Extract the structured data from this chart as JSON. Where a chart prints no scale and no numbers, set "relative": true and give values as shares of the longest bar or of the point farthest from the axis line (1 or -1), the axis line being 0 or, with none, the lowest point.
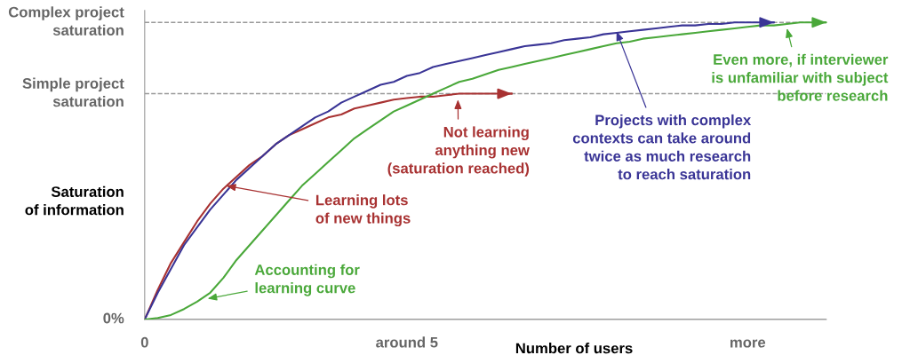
{
  "chart_data": {
    "type": "line",
    "relative": true,
    "xlabel": "Number of users",
    "ylabel": "Saturation\nof information",
    "categories": [
      "0",
      null,
      null,
      null,
      null,
      null,
      null,
      null,
      null,
      null,
      null,
      null,
      null,
      null,
      null,
      null,
      null,
      null,
      null,
      null,
      "around 5",
      null,
      null,
      null,
      null,
      null,
      null,
      null,
      null,
      null,
      null,
      null,
      null,
      null,
      null,
      null,
      null,
      null,
      null,
      null,
      null,
      null,
      null,
      null,
      null,
      null,
      "more",
      null,
      null,
      null,
      null,
      null,
      null
    ],
    "grid": false,
    "legend": false,
    "marker": "none",
    "line_style": "solid",
    "ref_lines": [
      {
        "axis": "y",
        "value": 1,
        "label": "Complex project\nsaturation",
        "color": "#999999",
        "line_style": "dashed"
      },
      {
        "axis": "y",
        "value": 0.76,
        "label": "Simple project\nsaturation",
        "color": "#999999",
        "line_style": "dashed"
      },
      {
        "axis": "y",
        "value": 0,
        "label": "0%",
        "color": "#999999",
        "line_style": "solid"
      }
    ],
    "series": [
      {
        "color": "#a83232",
        "values": [
          0,
          0.1,
          0.19,
          0.26,
          0.33,
          0.39,
          0.44,
          0.48,
          0.52,
          0.55,
          0.59,
          0.62,
          0.64,
          0.66,
          0.68,
          0.69,
          0.71,
          0.72,
          0.73,
          0.74,
          0.745,
          0.75,
          0.75,
          0.755,
          0.76,
          0.76,
          0.76,
          0.76,
          0.76,
          null,
          null,
          null,
          null,
          null,
          null,
          null,
          null,
          null,
          null,
          null,
          null,
          null,
          null,
          null,
          null,
          null,
          null,
          null,
          null,
          null,
          null,
          null,
          null
        ]
      },
      {
        "color": "#3a3596",
        "values": [
          0,
          0.09,
          0.17,
          0.25,
          0.31,
          0.37,
          0.42,
          0.47,
          0.51,
          0.55,
          0.59,
          0.62,
          0.65,
          0.68,
          0.7,
          0.73,
          0.75,
          0.77,
          0.79,
          0.8,
          0.82,
          0.83,
          0.85,
          0.86,
          0.87,
          0.88,
          0.89,
          0.9,
          0.91,
          0.92,
          0.925,
          0.93,
          0.94,
          0.945,
          0.95,
          0.96,
          0.965,
          0.97,
          0.975,
          0.98,
          0.985,
          0.99,
          0.99,
          0.995,
          0.995,
          1.0,
          1.0,
          1.0,
          1.0,
          null,
          null,
          null,
          null
        ]
      },
      {
        "color": "#4aa83a",
        "values": [
          0,
          0.005,
          0.015,
          0.035,
          0.06,
          0.09,
          0.14,
          0.2,
          0.25,
          0.3,
          0.35,
          0.4,
          0.45,
          0.49,
          0.53,
          0.57,
          0.61,
          0.64,
          0.67,
          0.7,
          0.72,
          0.74,
          0.76,
          0.78,
          0.8,
          0.81,
          0.825,
          0.84,
          0.85,
          0.86,
          0.87,
          0.88,
          0.89,
          0.9,
          0.91,
          0.92,
          0.93,
          0.935,
          0.945,
          0.95,
          0.955,
          0.96,
          0.965,
          0.97,
          0.975,
          0.98,
          0.985,
          0.99,
          0.99,
          0.995,
          1.0,
          1.0,
          1.0
        ]
      }
    ],
    "annotations": [
      "Learning lots\nof new things",
      "Not learning\nanything new\n(saturation reached)",
      "Accounting for\nlearning curve",
      "Projects with complex\ncontexts can take around\ntwice as much research\nto reach saturation",
      "Even more, if interviewer\nis unfamiliar with subject\nbefore research"
    ]
  }
}
